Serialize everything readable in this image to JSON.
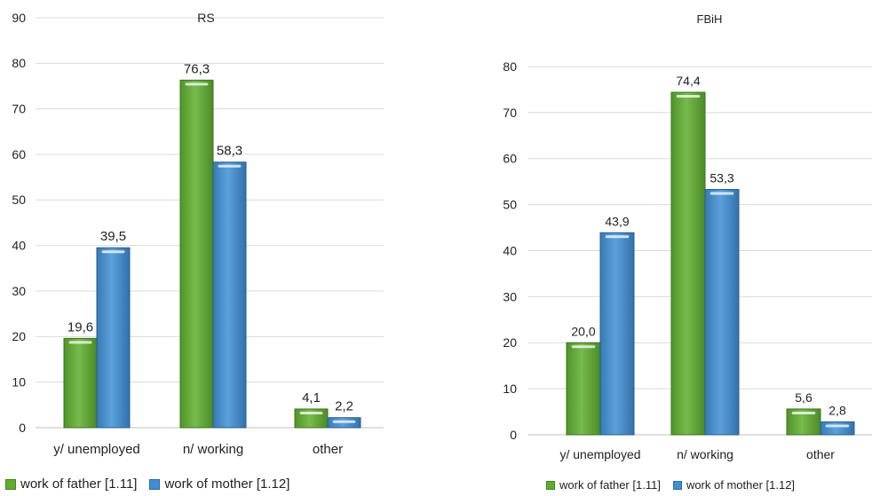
{
  "colors": {
    "father": "#5fae2e",
    "mother": "#3f8fd6",
    "grid": "#d9d9d9",
    "axis": "#bfbfbf"
  },
  "chart_data": [
    {
      "type": "bar",
      "title": "RS",
      "categories": [
        "y/ unemployed",
        "n/ working",
        "other"
      ],
      "series": [
        {
          "name": "work of father [1.11]",
          "values": [
            19.6,
            76.3,
            4.1
          ],
          "labels": [
            "19,6",
            "76,3",
            "4,1"
          ]
        },
        {
          "name": "work of mother [1.12]",
          "values": [
            39.5,
            58.3,
            2.2
          ],
          "labels": [
            "39,5",
            "58,3",
            "2,2"
          ]
        }
      ],
      "ylim": [
        0,
        90
      ],
      "yticks": [
        0,
        10,
        20,
        30,
        40,
        50,
        60,
        70,
        80,
        90
      ],
      "grid": true,
      "legend": "bottom",
      "xlabel": "",
      "ylabel": ""
    },
    {
      "type": "bar",
      "title": "FBiH",
      "categories": [
        "y/ unemployed",
        "n/ working",
        "other"
      ],
      "series": [
        {
          "name": "work of father [1.11]",
          "values": [
            20.0,
            74.4,
            5.6
          ],
          "labels": [
            "20,0",
            "74,4",
            "5,6"
          ]
        },
        {
          "name": "work of mother [1.12]",
          "values": [
            43.9,
            53.3,
            2.8
          ],
          "labels": [
            "43,9",
            "53,3",
            "2,8"
          ]
        }
      ],
      "ylim": [
        0,
        80
      ],
      "yticks": [
        0,
        10,
        20,
        30,
        40,
        50,
        60,
        70,
        80
      ],
      "grid": true,
      "legend": "bottom",
      "xlabel": "",
      "ylabel": ""
    }
  ]
}
